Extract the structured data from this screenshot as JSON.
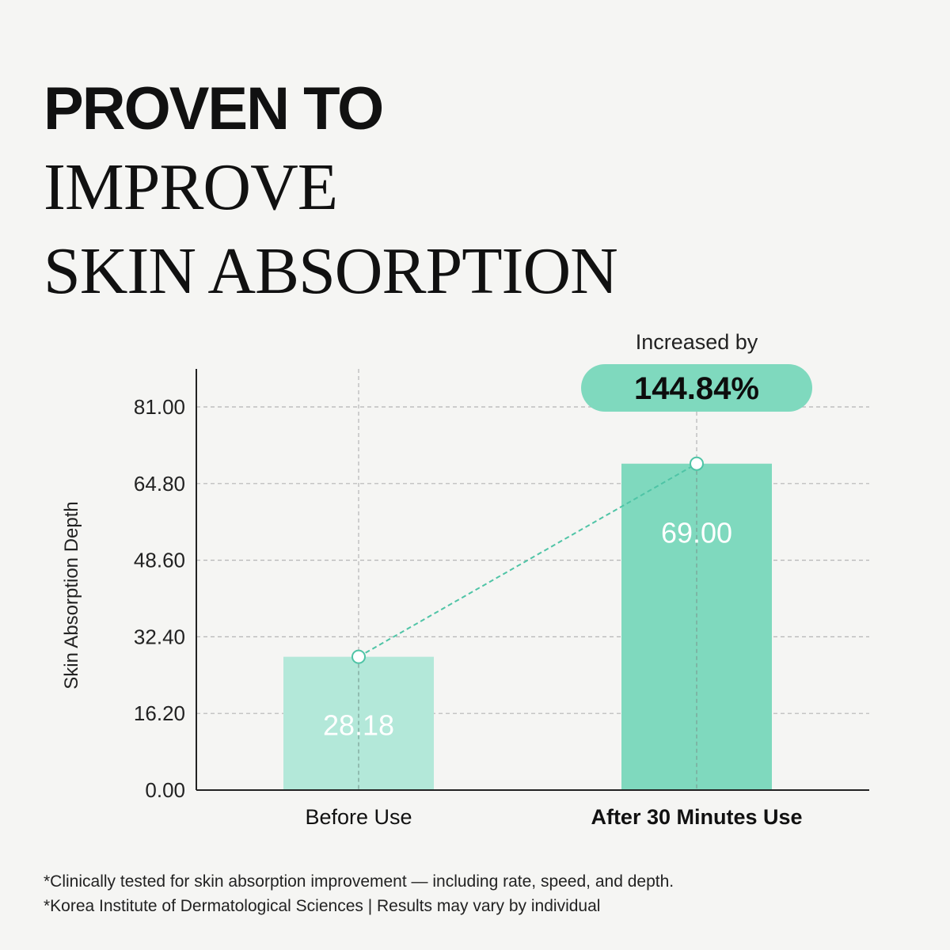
{
  "headline": {
    "line1": "PROVEN TO",
    "line2": "IMPROVE",
    "line3": "SKIN ABSORPTION"
  },
  "chart_data": {
    "type": "bar",
    "ylabel": "Skin Absorption Depth",
    "xlabel": "",
    "ylim": [
      0,
      81
    ],
    "yticks": [
      "0.00",
      "16.20",
      "32.40",
      "48.60",
      "64.80",
      "81.00"
    ],
    "categories": [
      "Before Use",
      "After 30 Minutes Use"
    ],
    "values": [
      28.18,
      69.0
    ],
    "value_labels": [
      "28.18",
      "69.00"
    ],
    "bar_colors": [
      "#b3e8d9",
      "#7fd9be"
    ],
    "grid": true,
    "annotation": {
      "label": "Increased by",
      "value": "144.84%",
      "pill_color": "#7fd9be",
      "line_color": "#4fc4a6"
    }
  },
  "footnotes": [
    "*Clinically tested for skin absorption improvement — including rate, speed, and depth.",
    "*Korea Institute of Dermatological Sciences | Results may vary by individual"
  ]
}
